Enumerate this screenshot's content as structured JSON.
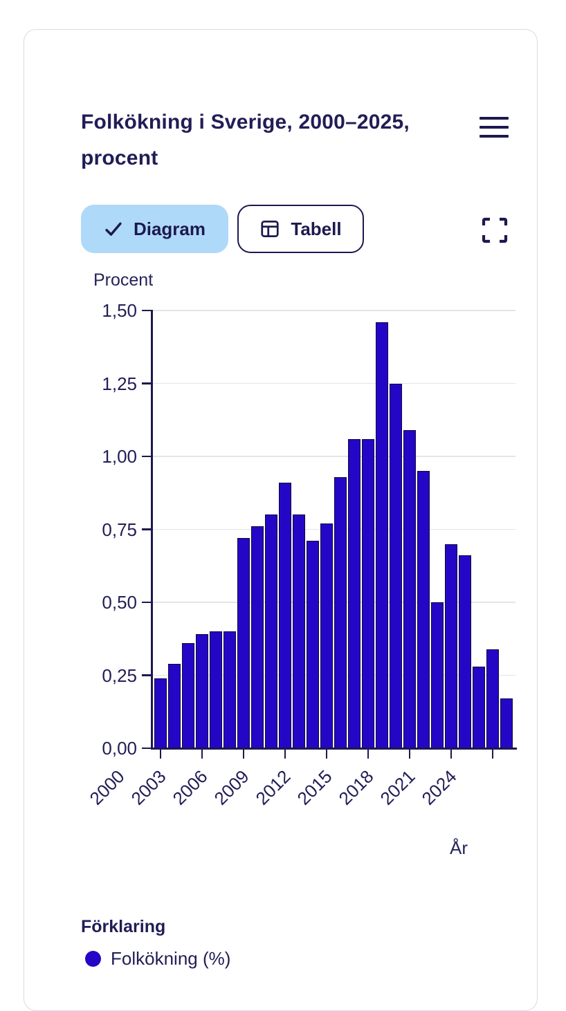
{
  "header": {
    "title": "Folkökning i Sverige, 2000–2025, procent"
  },
  "toolbar": {
    "diagram_label": "Diagram",
    "tabell_label": "Tabell"
  },
  "colors": {
    "bar_fill": "#2407c6",
    "bar_border": "#0e0838",
    "navy_text": "#211d56",
    "active_tab_bg": "#afd9f8",
    "gridline": "#e4e4ea",
    "card_border": "#dbdbe3"
  },
  "chart_data": {
    "type": "bar",
    "title": "Folkökning i Sverige, 2000–2025, procent",
    "ylabel": "Procent",
    "xlabel": "År",
    "categories": [
      "2000",
      "2001",
      "2002",
      "2003",
      "2004",
      "2005",
      "2006",
      "2007",
      "2008",
      "2009",
      "2010",
      "2011",
      "2012",
      "2013",
      "2014",
      "2015",
      "2016",
      "2017",
      "2018",
      "2019",
      "2020",
      "2021",
      "2022",
      "2023",
      "2024",
      "2025"
    ],
    "series": [
      {
        "name": "Folkökning (%)",
        "values": [
          0.24,
          0.29,
          0.36,
          0.39,
          0.4,
          0.4,
          0.72,
          0.76,
          0.8,
          0.91,
          0.8,
          0.71,
          0.77,
          0.93,
          1.06,
          1.06,
          1.46,
          1.25,
          1.09,
          0.95,
          0.5,
          0.7,
          0.66,
          0.28,
          0.34,
          0.17
        ]
      }
    ],
    "ylim": [
      0,
      1.5
    ],
    "ytick_values": [
      0,
      0.25,
      0.5,
      0.75,
      1.0,
      1.25,
      1.5
    ],
    "ytick_labels": [
      "0,00",
      "0,25",
      "0,50",
      "0,75",
      "1,00",
      "1,25",
      "1,50"
    ],
    "xtick_labels": [
      "2000",
      "2003",
      "2006",
      "2009",
      "2012",
      "2015",
      "2018",
      "2021",
      "2024"
    ],
    "xtick_indices": [
      0,
      3,
      6,
      9,
      12,
      15,
      18,
      21,
      24
    ],
    "grid": true,
    "legend_position": "bottom",
    "bar_color": "#2407c6",
    "bar_border_color": "#0e0838"
  },
  "legend": {
    "heading": "Förklaring",
    "items": [
      {
        "label": "Folkökning (%)",
        "color": "#2407c6"
      }
    ]
  }
}
